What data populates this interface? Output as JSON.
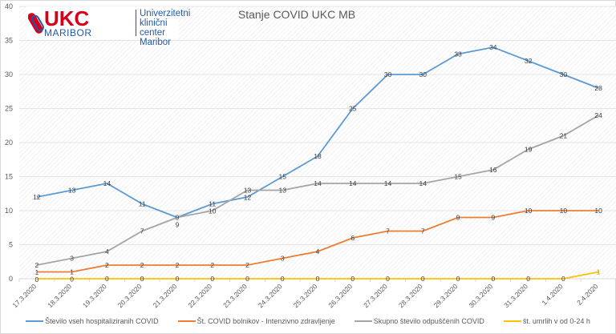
{
  "logo": {
    "mark": "UKC",
    "sub": "MARIBOR",
    "lines": [
      "Univerzitetni",
      "klinični center",
      "Maribor"
    ]
  },
  "chart_data": {
    "type": "line",
    "title": "Stanje COVID UKC MB",
    "categories": [
      "17.3.2020",
      "18.3.2020",
      "19.3.2020",
      "20.3.2020",
      "21.3.2020",
      "22.3.2020",
      "23.3.2020",
      "24.3.2020",
      "25.3.2020",
      "26.3.2020",
      "27.3.2020",
      "28.3.2020",
      "29.3.2020",
      "30.3.2020",
      "31.3.2020",
      "1.4.2020",
      "2.4.2020"
    ],
    "ylim": [
      0,
      40
    ],
    "yticks": [
      0,
      5,
      10,
      15,
      20,
      25,
      30,
      35,
      40
    ],
    "grid": true,
    "legend": "bottom",
    "data_labels": true,
    "series": [
      {
        "name": "Število vseh hospitaliziranih COVID",
        "color": "#5b9bd5",
        "values": [
          12,
          13,
          14,
          11,
          9,
          11,
          12,
          15,
          18,
          25,
          30,
          30,
          33,
          34,
          32,
          30,
          28
        ]
      },
      {
        "name": "Št. COVID bolnikov - Intenzivno zdravljenje",
        "color": "#ed7d31",
        "values": [
          1,
          1,
          2,
          2,
          2,
          2,
          2,
          3,
          4,
          6,
          7,
          7,
          9,
          9,
          10,
          10,
          10
        ]
      },
      {
        "name": "Skupno število odpuščenih COVID",
        "color": "#a5a5a5",
        "values": [
          2,
          3,
          4,
          7,
          9,
          10,
          13,
          13,
          14,
          14,
          14,
          14,
          15,
          16,
          19,
          21,
          24
        ]
      },
      {
        "name": "št. umrlih v od 0-24 h",
        "color": "#ffc000",
        "values": [
          0,
          0,
          0,
          0,
          0,
          0,
          0,
          0,
          0,
          0,
          0,
          0,
          0,
          0,
          0,
          0,
          1
        ]
      }
    ]
  }
}
